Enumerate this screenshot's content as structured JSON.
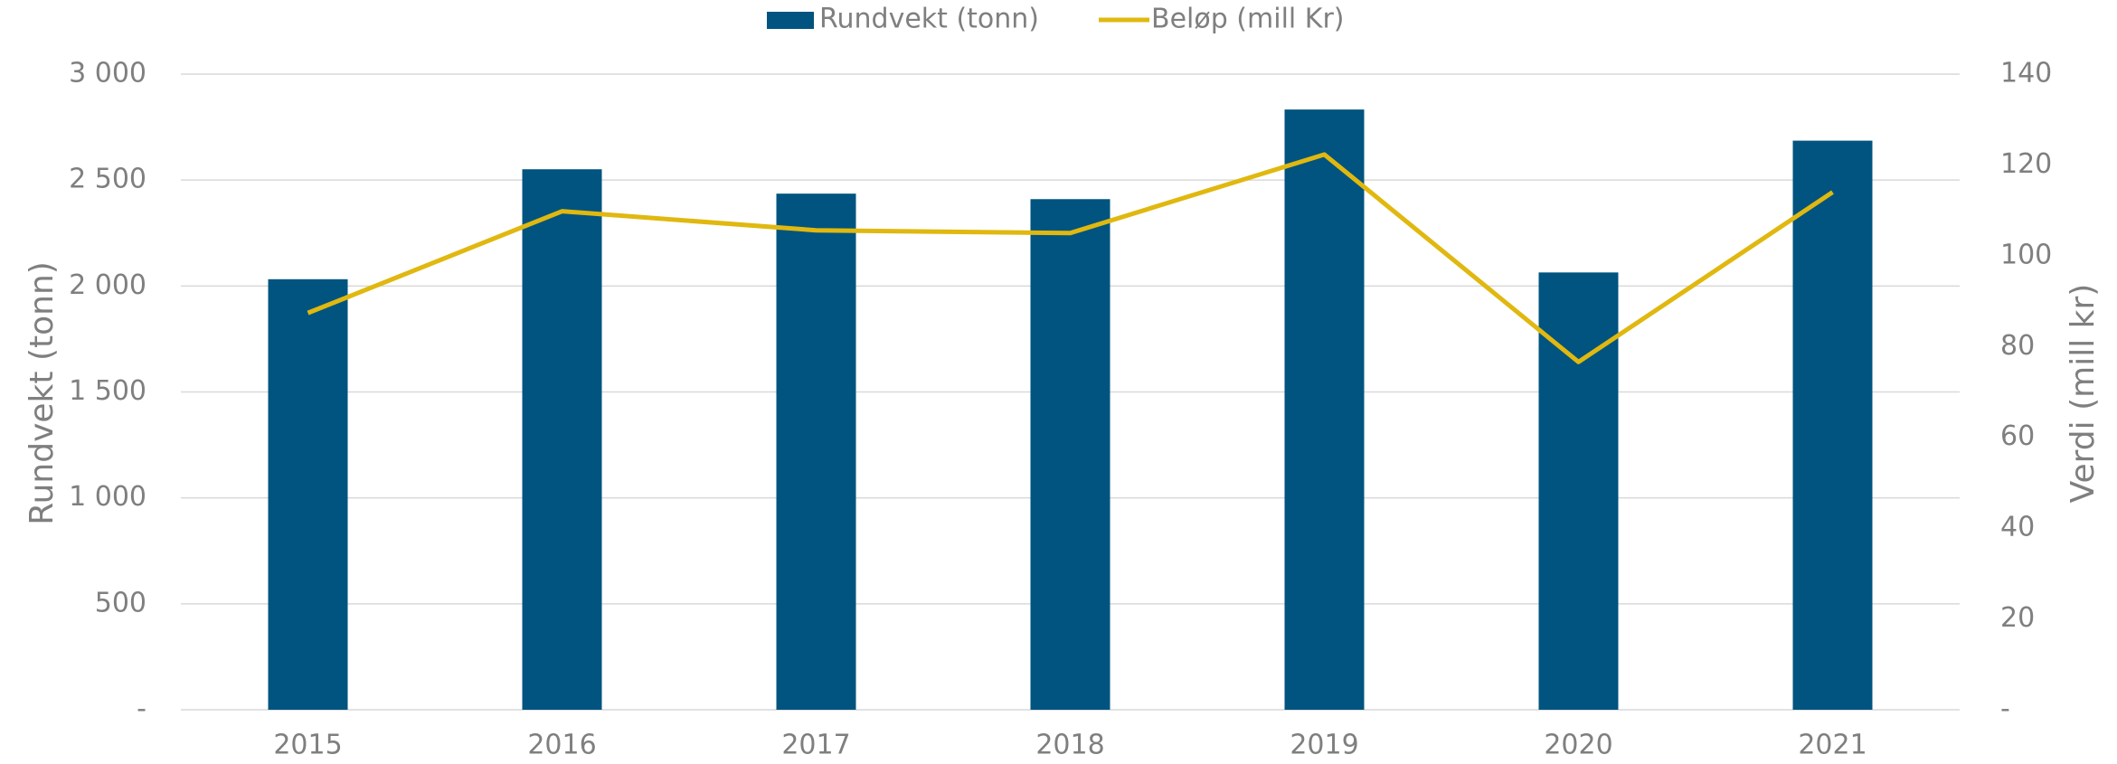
{
  "chart_data": {
    "type": "bar",
    "categories": [
      "2015",
      "2016",
      "2017",
      "2018",
      "2019",
      "2020",
      "2021"
    ],
    "series": [
      {
        "name": "Rundvekt (tonn)",
        "type": "bar",
        "color": "#00547f",
        "values": [
          2032,
          2551,
          2436,
          2410,
          2833,
          2064,
          2686
        ]
      },
      {
        "name": "Beløp (mill Kr)",
        "type": "line",
        "axis": "y2",
        "color": "#e0b80f",
        "values": [
          87.4,
          109.8,
          105.6,
          105,
          122.3,
          76.6,
          114
        ]
      }
    ],
    "ylabel": "Rundvekt (tonn)",
    "y2label": "Verdi (mill kr)",
    "ylim": [
      0,
      3000
    ],
    "yticks": [
      {
        "value": 0,
        "label": "-"
      },
      500,
      {
        "value": 1000,
        "label": "1 000"
      },
      {
        "value": 1500,
        "label": "1 500"
      },
      {
        "value": 2000,
        "label": "2 000"
      },
      {
        "value": 2500,
        "label": "2 500"
      },
      {
        "value": 3000,
        "label": "3 000"
      }
    ],
    "y2lim": [
      0,
      140
    ],
    "y2ticks": [
      {
        "value": 0,
        "label": "-"
      },
      20,
      40,
      60,
      80,
      100,
      120,
      140
    ],
    "grid": true,
    "legend": "top"
  }
}
